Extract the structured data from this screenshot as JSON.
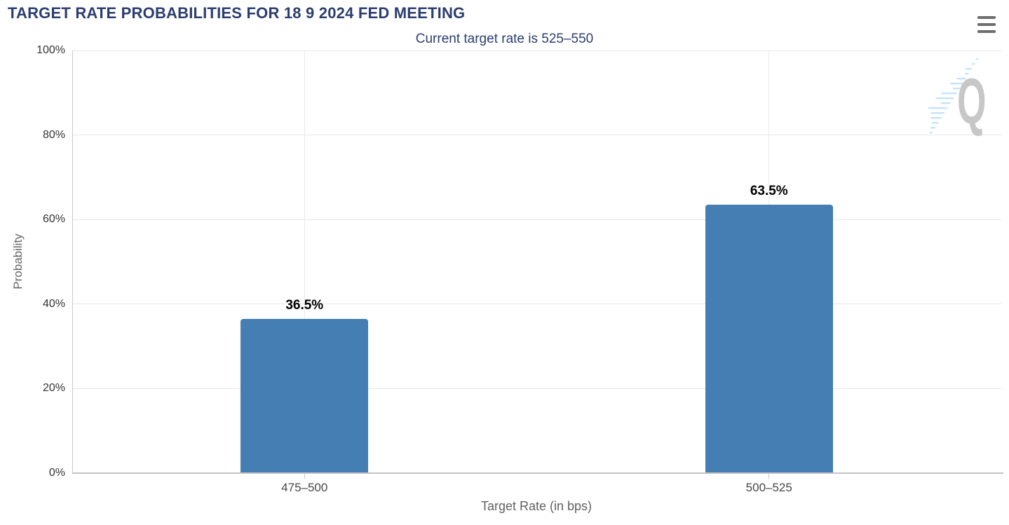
{
  "header": {
    "menu_icon": "hamburger-menu-icon"
  },
  "chart_data": {
    "type": "bar",
    "title": "TARGET RATE PROBABILITIES FOR 18 9 2024 FED MEETING",
    "subtitle": "Current target rate is 525–550",
    "categories": [
      "475–500",
      "500–525"
    ],
    "values": [
      36.5,
      63.5
    ],
    "value_labels": [
      "36.5%",
      "63.5%"
    ],
    "xlabel": "Target Rate (in bps)",
    "ylabel": "Probability",
    "ylim": [
      0,
      100
    ],
    "yticks": [
      0,
      20,
      40,
      60,
      80,
      100
    ],
    "ytick_labels": [
      "0%",
      "20%",
      "40%",
      "60%",
      "80%",
      "100%"
    ],
    "grid": true,
    "legend": "none",
    "watermark_letter": "Q",
    "colors": {
      "bar": "#447eb3",
      "title_text": "#2c3e6e",
      "axis_line": "#c9c9c9",
      "gridline": "#e7e7e7",
      "tick_label": "#333333",
      "axis_title": "#666666",
      "value_label": "#000000",
      "menu_icon": "#6e6e6e",
      "watermark_gray": "#c7c7c7",
      "watermark_blue": "#c5e3f6"
    }
  }
}
